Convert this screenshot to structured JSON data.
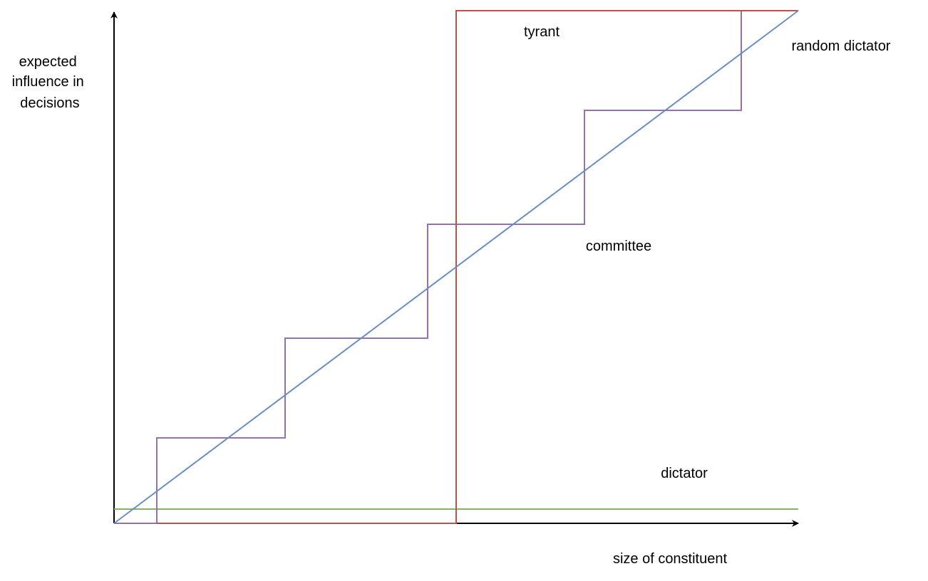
{
  "diagram": {
    "y_axis_label": [
      "expected",
      "influence in",
      "decisions"
    ],
    "x_axis_label": "size of constituent",
    "curves": {
      "tyrant": {
        "label": "tyrant",
        "color": "#b85450"
      },
      "random_dictator": {
        "label": "random dictator",
        "color": "#6c8ebf"
      },
      "committee": {
        "label": "committee",
        "color": "#9673a6"
      },
      "dictator": {
        "label": "dictator",
        "color": "#82b366"
      }
    },
    "axis_color": "#000000"
  }
}
